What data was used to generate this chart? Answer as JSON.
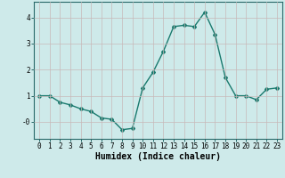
{
  "x": [
    0,
    1,
    2,
    3,
    4,
    5,
    6,
    7,
    8,
    9,
    10,
    11,
    12,
    13,
    14,
    15,
    16,
    17,
    18,
    19,
    20,
    21,
    22,
    23
  ],
  "y": [
    1.0,
    1.0,
    0.75,
    0.65,
    0.5,
    0.4,
    0.15,
    0.1,
    -0.3,
    -0.25,
    1.3,
    1.9,
    2.7,
    3.65,
    3.7,
    3.65,
    4.2,
    3.35,
    1.7,
    1.0,
    1.0,
    0.85,
    1.25,
    1.3
  ],
  "line_color": "#1a7a6e",
  "marker": "D",
  "markersize": 2,
  "linewidth": 1.0,
  "bg_color": "#ceeaea",
  "grid_color": "#b0cccc",
  "xlabel": "Humidex (Indice chaleur)",
  "xlabel_fontsize": 7,
  "yticks": [
    0,
    1,
    2,
    3,
    4
  ],
  "ylim": [
    -0.65,
    4.6
  ],
  "xlim": [
    -0.5,
    23.5
  ],
  "xtick_labels": [
    "0",
    "1",
    "2",
    "3",
    "4",
    "5",
    "6",
    "7",
    "8",
    "9",
    "10",
    "11",
    "12",
    "13",
    "14",
    "15",
    "16",
    "17",
    "18",
    "19",
    "20",
    "21",
    "22",
    "23"
  ],
  "tick_fontsize": 5.5,
  "ylabel_neg0": "-0"
}
